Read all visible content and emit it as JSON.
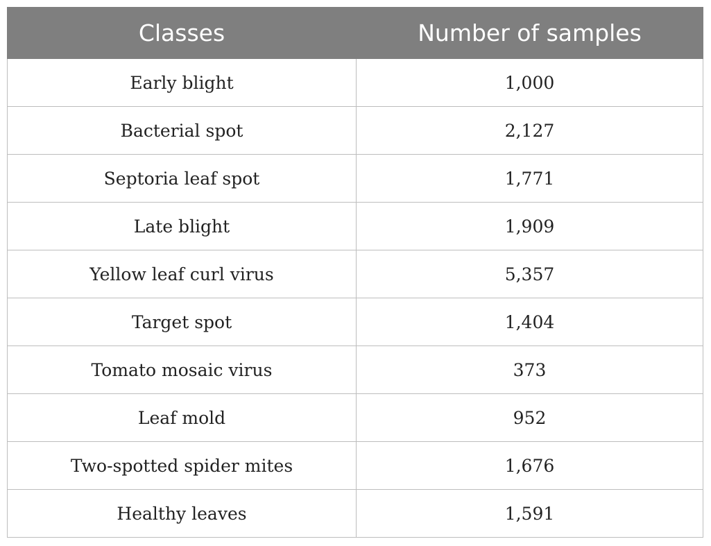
{
  "table": {
    "headers": [
      "Classes",
      "Number of samples"
    ],
    "rows": [
      [
        "Early blight",
        "1,000"
      ],
      [
        "Bacterial spot",
        "2,127"
      ],
      [
        "Septoria leaf spot",
        "1,771"
      ],
      [
        "Late blight",
        "1,909"
      ],
      [
        "Yellow leaf curl virus",
        "5,357"
      ],
      [
        "Target spot",
        "1,404"
      ],
      [
        "Tomato mosaic virus",
        "373"
      ],
      [
        "Leaf mold",
        "952"
      ],
      [
        "Two-spotted spider mites",
        "1,676"
      ],
      [
        "Healthy leaves",
        "1,591"
      ]
    ]
  },
  "colors": {
    "header_background": "#7f7f7f",
    "header_text": "#ffffff",
    "grid_line": "#bdbdbd"
  }
}
